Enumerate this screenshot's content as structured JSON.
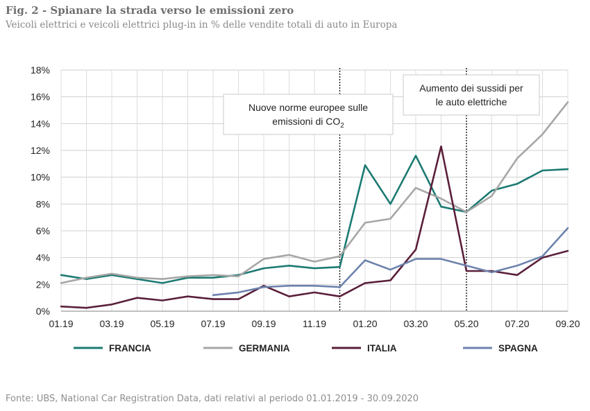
{
  "header": {
    "title": "Fig. 2 - Spianare la strada verso le emissioni zero",
    "subtitle": "Veicoli elettrici e veicoli elettrici plug-in in % delle vendite totali di auto in Europa"
  },
  "footer": {
    "source": "Fonte: UBS, National Car Registration Data, dati relativi al periodo 01.01.2019 - 30.09.2020"
  },
  "chart_data": {
    "type": "line",
    "title": "Fig. 2 - Spianare la strada verso le emissioni zero",
    "subtitle": "Veicoli elettrici e veicoli elettrici plug-in in % delle vendite totali di auto in Europa",
    "xlabel": "",
    "ylabel": "",
    "ylim": [
      0,
      18
    ],
    "y_ticks": [
      0,
      2,
      4,
      6,
      8,
      10,
      12,
      14,
      16,
      18
    ],
    "y_tick_labels": [
      "0%",
      "2%",
      "4%",
      "6%",
      "8%",
      "10%",
      "12%",
      "14%",
      "16%",
      "18%"
    ],
    "x": [
      "01.19",
      "02.19",
      "03.19",
      "04.19",
      "05.19",
      "06.19",
      "07.19",
      "08.19",
      "09.19",
      "10.19",
      "11.19",
      "12.19",
      "01.20",
      "02.20",
      "03.20",
      "04.20",
      "05.20",
      "06.20",
      "07.20",
      "08.20",
      "09.20"
    ],
    "x_tick_labels": [
      "01.19",
      "03.19",
      "05.19",
      "07.19",
      "09.19",
      "11.19",
      "01.20",
      "03.20",
      "05.20",
      "07.20",
      "09.20"
    ],
    "grid": true,
    "legend_position": "bottom",
    "series": [
      {
        "name": "FRANCIA",
        "color": "#1b7a72",
        "values": [
          2.7,
          2.4,
          2.7,
          2.4,
          2.1,
          2.5,
          2.5,
          2.7,
          3.2,
          3.4,
          3.2,
          3.3,
          10.9,
          8.0,
          11.6,
          7.8,
          7.4,
          9.0,
          9.5,
          10.5,
          10.6
        ]
      },
      {
        "name": "GERMANIA",
        "color": "#a6a6a6",
        "values": [
          2.1,
          2.5,
          2.8,
          2.5,
          2.4,
          2.6,
          2.7,
          2.6,
          3.9,
          4.2,
          3.7,
          4.1,
          6.6,
          6.9,
          9.2,
          8.4,
          7.4,
          8.6,
          11.4,
          13.2,
          15.6
        ]
      },
      {
        "name": "ITALIA",
        "color": "#5a1f3a",
        "values": [
          0.35,
          0.25,
          0.5,
          1.0,
          0.8,
          1.1,
          0.9,
          0.9,
          1.9,
          1.1,
          1.4,
          1.1,
          2.1,
          2.3,
          4.6,
          12.3,
          3.0,
          3.0,
          2.7,
          4.0,
          4.5
        ]
      },
      {
        "name": "SPAGNA",
        "color": "#6d83ad",
        "values": [
          null,
          null,
          null,
          null,
          null,
          null,
          1.2,
          1.4,
          1.8,
          1.9,
          1.9,
          1.8,
          3.8,
          3.1,
          3.9,
          3.9,
          3.4,
          2.9,
          3.4,
          4.1,
          6.2
        ]
      }
    ],
    "annotations": [
      {
        "at": "12.19",
        "line1": "Nuove norme europee sulle",
        "line2": "emissioni di CO",
        "line2_sub": "2"
      },
      {
        "at": "05.20",
        "line1": "Aumento dei sussidi per",
        "line2": "le auto elettriche",
        "line2_sub": ""
      }
    ]
  }
}
